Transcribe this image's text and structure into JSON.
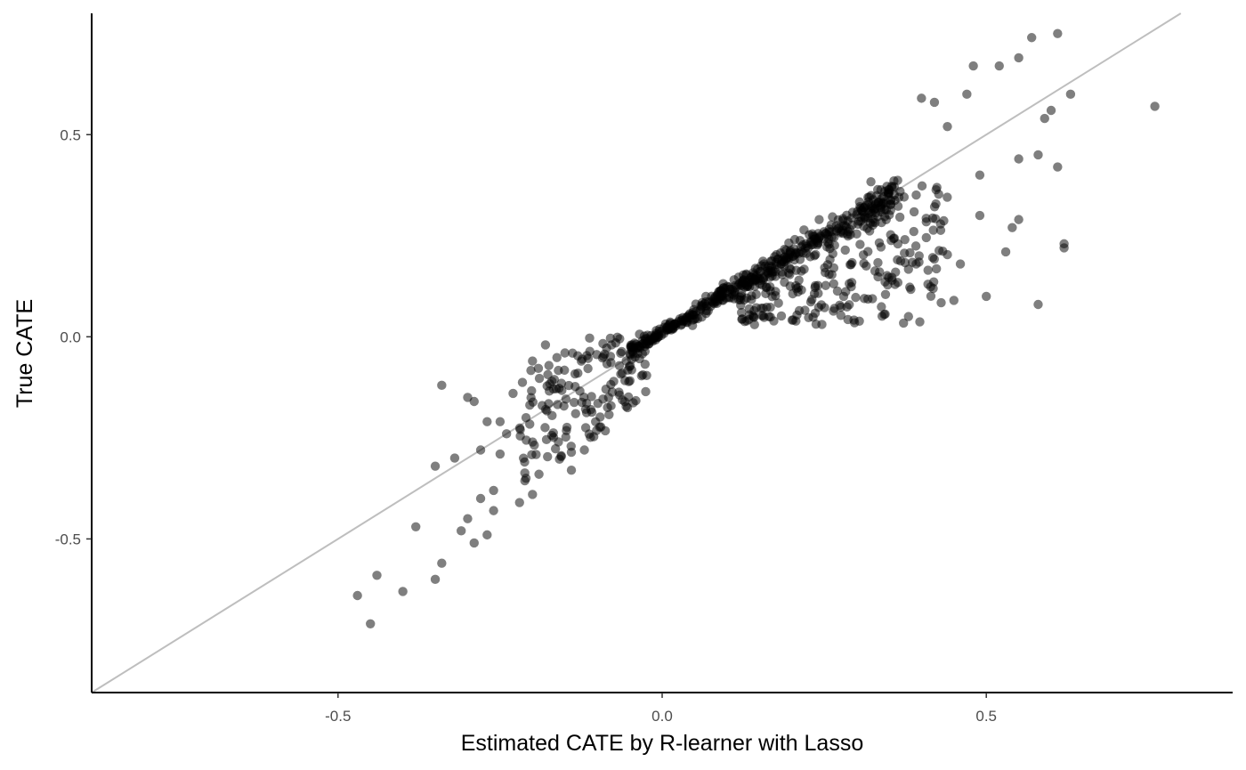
{
  "chart_data": {
    "type": "scatter",
    "title": "",
    "xlabel": "Estimated CATE by R-learner with Lasso",
    "ylabel": "True CATE",
    "xlim": [
      -0.88,
      0.88
    ],
    "ylim": [
      -0.88,
      0.8
    ],
    "x_ticks": [
      {
        "value": -0.5,
        "label": "-0.5"
      },
      {
        "value": 0.0,
        "label": "0.0"
      },
      {
        "value": 0.5,
        "label": "0.5"
      }
    ],
    "y_ticks": [
      {
        "value": -0.5,
        "label": "-0.5"
      },
      {
        "value": 0.0,
        "label": "0.0"
      },
      {
        "value": 0.5,
        "label": "0.5"
      }
    ],
    "grid": false,
    "legend": "none",
    "reference_line": {
      "slope": 1,
      "intercept": 0,
      "color": "#bebebe"
    },
    "point_color": "#000000",
    "point_opacity": 0.5,
    "points": {
      "x": [
        -0.47,
        -0.45,
        -0.44,
        -0.4,
        -0.38,
        -0.35,
        -0.35,
        -0.34,
        -0.34,
        -0.32,
        -0.31,
        -0.3,
        -0.3,
        -0.29,
        -0.29,
        -0.28,
        -0.28,
        -0.27,
        -0.27,
        -0.26,
        -0.26,
        -0.25,
        -0.25,
        -0.24,
        -0.23,
        -0.22,
        -0.21,
        -0.21,
        -0.2,
        -0.2,
        -0.19,
        -0.18,
        -0.17,
        -0.16,
        -0.15,
        -0.14,
        -0.13,
        -0.12,
        -0.11,
        0.52,
        0.55,
        0.57,
        0.61,
        0.61,
        0.62,
        0.63,
        0.76,
        0.59,
        0.55,
        0.53,
        0.5,
        0.48,
        0.47,
        0.44,
        0.46,
        0.4,
        0.42,
        0.36,
        0.38,
        0.45,
        0.49,
        0.49,
        0.41,
        0.54,
        0.58,
        0.62,
        0.6,
        0.58,
        0.55
      ],
      "y": [
        -0.64,
        -0.71,
        -0.59,
        -0.63,
        -0.47,
        -0.6,
        -0.32,
        -0.12,
        -0.56,
        -0.3,
        -0.48,
        -0.15,
        -0.45,
        -0.16,
        -0.51,
        -0.4,
        -0.28,
        -0.49,
        -0.21,
        -0.43,
        -0.38,
        -0.21,
        -0.29,
        -0.24,
        -0.14,
        -0.41,
        -0.2,
        -0.35,
        -0.39,
        -0.06,
        -0.34,
        -0.02,
        -0.11,
        -0.26,
        -0.04,
        -0.33,
        -0.09,
        -0.28,
        -0.18,
        0.67,
        0.69,
        0.74,
        0.75,
        0.42,
        0.22,
        0.6,
        0.57,
        0.54,
        0.44,
        0.21,
        0.1,
        0.67,
        0.6,
        0.52,
        0.18,
        0.59,
        0.58,
        0.16,
        0.05,
        0.09,
        0.4,
        0.3,
        0.13,
        0.27,
        0.08,
        0.23,
        0.56,
        0.45,
        0.29
      ]
    }
  }
}
